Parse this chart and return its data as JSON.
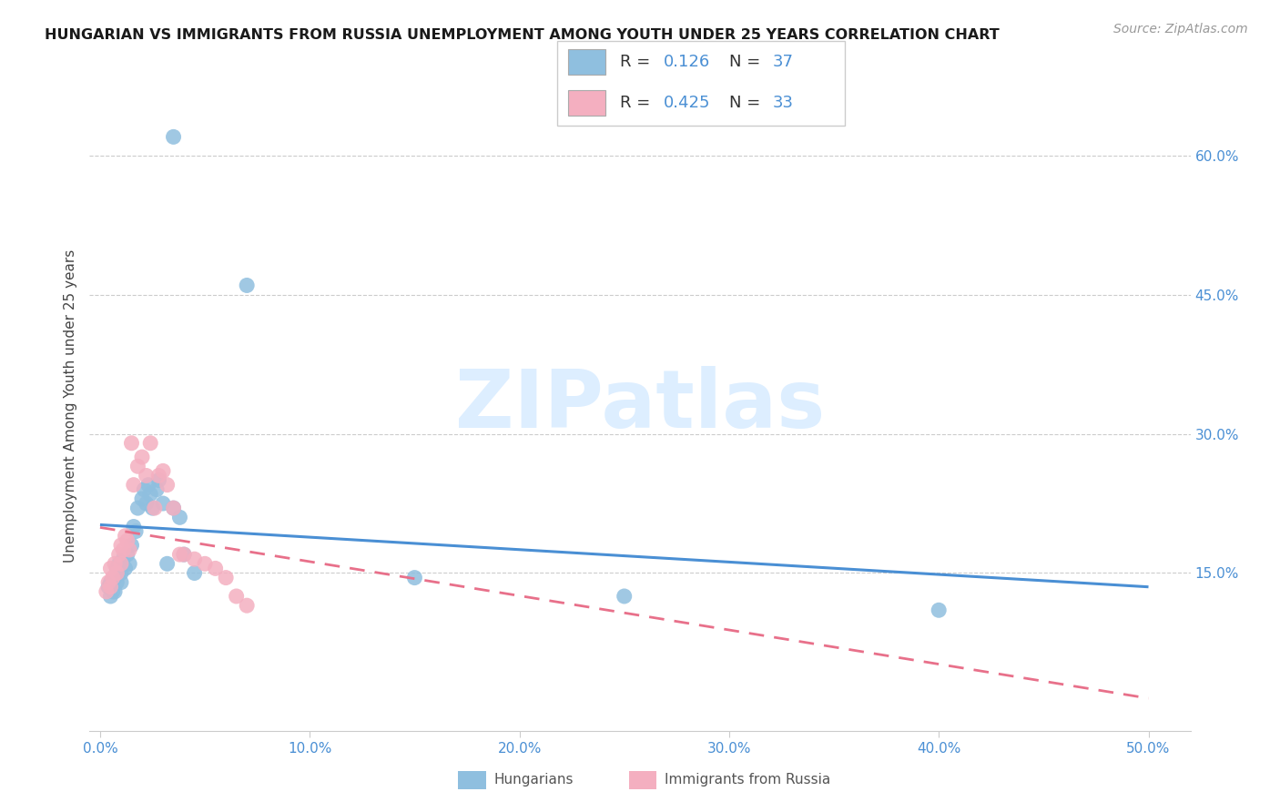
{
  "title": "HUNGARIAN VS IMMIGRANTS FROM RUSSIA UNEMPLOYMENT AMONG YOUTH UNDER 25 YEARS CORRELATION CHART",
  "source": "Source: ZipAtlas.com",
  "ylabel": "Unemployment Among Youth under 25 years",
  "ytick_values": [
    15,
    30,
    45,
    60
  ],
  "ytick_labels": [
    "15.0%",
    "30.0%",
    "45.0%",
    "60.0%"
  ],
  "xtick_values": [
    0,
    10,
    20,
    30,
    40,
    50
  ],
  "xtick_labels": [
    "0.0%",
    "10.0%",
    "20.0%",
    "30.0%",
    "40.0%",
    "50.0%"
  ],
  "xlim": [
    -0.5,
    52
  ],
  "ylim": [
    -2,
    68
  ],
  "blue_scatter_color": "#8fbfdf",
  "pink_scatter_color": "#f4afc0",
  "blue_line_color": "#4a8fd4",
  "pink_line_color": "#e8708a",
  "grid_color": "#cccccc",
  "watermark_color": "#ddeeff",
  "watermark_text": "ZIPatlas",
  "legend_r1_text": "R = ",
  "legend_r1_val": "0.126",
  "legend_n1_text": "  N = ",
  "legend_n1_val": "37",
  "legend_r2_val": "0.425",
  "legend_n2_val": "33",
  "legend_val_color": "#4a8fd4",
  "legend_text_color": "#333333",
  "bottom_legend_color": "#555555",
  "hung_x": [
    0.4,
    0.5,
    0.5,
    0.6,
    0.7,
    0.7,
    0.8,
    0.8,
    0.9,
    1.0,
    1.0,
    1.1,
    1.2,
    1.3,
    1.4,
    1.5,
    1.6,
    1.7,
    1.8,
    2.0,
    2.1,
    2.2,
    2.3,
    2.4,
    2.5,
    2.7,
    2.8,
    3.0,
    3.2,
    3.5,
    3.8,
    4.0,
    4.5,
    7.0,
    15.0,
    25.0,
    40.0
  ],
  "hung_y": [
    13.5,
    12.5,
    14.0,
    13.0,
    13.0,
    14.5,
    14.0,
    15.5,
    16.0,
    14.0,
    15.0,
    16.5,
    15.5,
    17.0,
    16.0,
    18.0,
    20.0,
    19.5,
    22.0,
    23.0,
    24.0,
    22.5,
    24.5,
    23.5,
    22.0,
    24.0,
    25.0,
    22.5,
    16.0,
    22.0,
    21.0,
    17.0,
    15.0,
    46.0,
    14.5,
    12.5,
    11.0
  ],
  "hung_outlier_x": [
    3.5
  ],
  "hung_outlier_y": [
    62.0
  ],
  "russ_x": [
    0.3,
    0.4,
    0.5,
    0.5,
    0.6,
    0.7,
    0.8,
    0.9,
    1.0,
    1.0,
    1.1,
    1.2,
    1.3,
    1.4,
    1.5,
    1.6,
    1.8,
    2.0,
    2.2,
    2.4,
    2.6,
    2.8,
    3.0,
    3.2,
    3.5,
    3.8,
    4.0,
    4.5,
    5.0,
    5.5,
    6.0,
    6.5,
    7.0
  ],
  "russ_y": [
    13.0,
    14.0,
    13.5,
    15.5,
    14.5,
    16.0,
    15.0,
    17.0,
    16.0,
    18.0,
    17.5,
    19.0,
    18.5,
    17.5,
    29.0,
    24.5,
    26.5,
    27.5,
    25.5,
    29.0,
    22.0,
    25.5,
    26.0,
    24.5,
    22.0,
    17.0,
    17.0,
    16.5,
    16.0,
    15.5,
    14.5,
    12.5,
    11.5
  ]
}
